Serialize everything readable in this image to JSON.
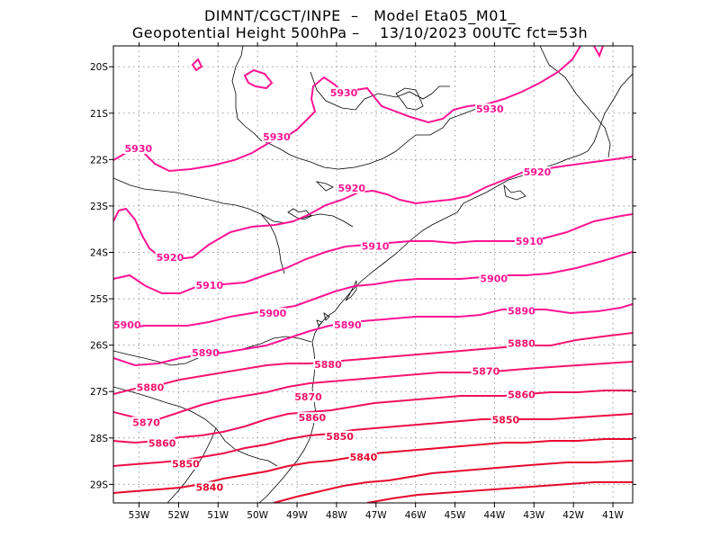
{
  "title_line1": "DIMNT/CGCT/INPE  –   Model Eta05_M01_",
  "title_line2": "Geopotential Height 500hPa –    13/10/2023 00UTC fct=53h",
  "x_ticks": [
    "53W",
    "52W",
    "51W",
    "50W",
    "49W",
    "48W",
    "47W",
    "46W",
    "45W",
    "44W",
    "43W",
    "42W",
    "41W"
  ],
  "y_ticks": [
    "20S",
    "21S",
    "22S",
    "23S",
    "24S",
    "25S",
    "26S",
    "27S",
    "28S",
    "29S"
  ],
  "colors": {
    "contour_high": "#ff1493",
    "contour_low": "#e8003c",
    "coast": "#000000",
    "grid": "#999999"
  },
  "contour_labels": [
    {
      "text": "5930",
      "lon": -47.8,
      "lat": -20.6,
      "color": "#ff1493"
    },
    {
      "text": "5930",
      "lon": -44.1,
      "lat": -20.95,
      "color": "#ff1493"
    },
    {
      "text": "5930",
      "lon": -49.5,
      "lat": -21.55,
      "color": "#ff1493"
    },
    {
      "text": "5930",
      "lon": -53.0,
      "lat": -21.8,
      "color": "#ff1493"
    },
    {
      "text": "5920",
      "lon": -42.9,
      "lat": -22.3,
      "color": "#ff1493"
    },
    {
      "text": "5920",
      "lon": -47.6,
      "lat": -22.65,
      "color": "#ff1493"
    },
    {
      "text": "5920",
      "lon": -52.2,
      "lat": -24.15,
      "color": "#ff1493"
    },
    {
      "text": "5910",
      "lon": -47.0,
      "lat": -23.9,
      "color": "#ff1493"
    },
    {
      "text": "5910",
      "lon": -43.1,
      "lat": -23.8,
      "color": "#ff1493"
    },
    {
      "text": "5910",
      "lon": -51.2,
      "lat": -24.75,
      "color": "#ff1493"
    },
    {
      "text": "5900",
      "lon": -44.0,
      "lat": -24.6,
      "color": "#ff1493"
    },
    {
      "text": "5900",
      "lon": -49.6,
      "lat": -25.35,
      "color": "#ff1493"
    },
    {
      "text": "5900",
      "lon": -53.6,
      "lat": -25.6,
      "color": "#ff1493"
    },
    {
      "text": "5890",
      "lon": -43.3,
      "lat": -25.3,
      "color": "#ff1493"
    },
    {
      "text": "5890",
      "lon": -47.7,
      "lat": -25.6,
      "color": "#ff1493"
    },
    {
      "text": "5890",
      "lon": -51.3,
      "lat": -26.2,
      "color": "#ff1493"
    },
    {
      "text": "5880",
      "lon": -43.3,
      "lat": -26.0,
      "color": "#f5146e"
    },
    {
      "text": "5880",
      "lon": -48.2,
      "lat": -26.45,
      "color": "#f5146e"
    },
    {
      "text": "5880",
      "lon": -52.7,
      "lat": -26.95,
      "color": "#f5146e"
    },
    {
      "text": "5870",
      "lon": -44.2,
      "lat": -26.6,
      "color": "#f5146e"
    },
    {
      "text": "5870",
      "lon": -48.7,
      "lat": -27.15,
      "color": "#f5146e"
    },
    {
      "text": "5870",
      "lon": -52.8,
      "lat": -27.7,
      "color": "#f5146e"
    },
    {
      "text": "5860",
      "lon": -43.3,
      "lat": -27.1,
      "color": "#f0105a"
    },
    {
      "text": "5860",
      "lon": -48.6,
      "lat": -27.6,
      "color": "#f0105a"
    },
    {
      "text": "5860",
      "lon": -52.4,
      "lat": -28.15,
      "color": "#f0105a"
    },
    {
      "text": "5850",
      "lon": -43.7,
      "lat": -27.65,
      "color": "#eb0c46"
    },
    {
      "text": "5850",
      "lon": -47.9,
      "lat": -28.0,
      "color": "#eb0c46"
    },
    {
      "text": "5850",
      "lon": -51.8,
      "lat": -28.6,
      "color": "#eb0c46"
    },
    {
      "text": "5840",
      "lon": -47.3,
      "lat": -28.45,
      "color": "#e6082e"
    },
    {
      "text": "5840",
      "lon": -51.2,
      "lat": -29.1,
      "color": "#e6082e"
    }
  ]
}
